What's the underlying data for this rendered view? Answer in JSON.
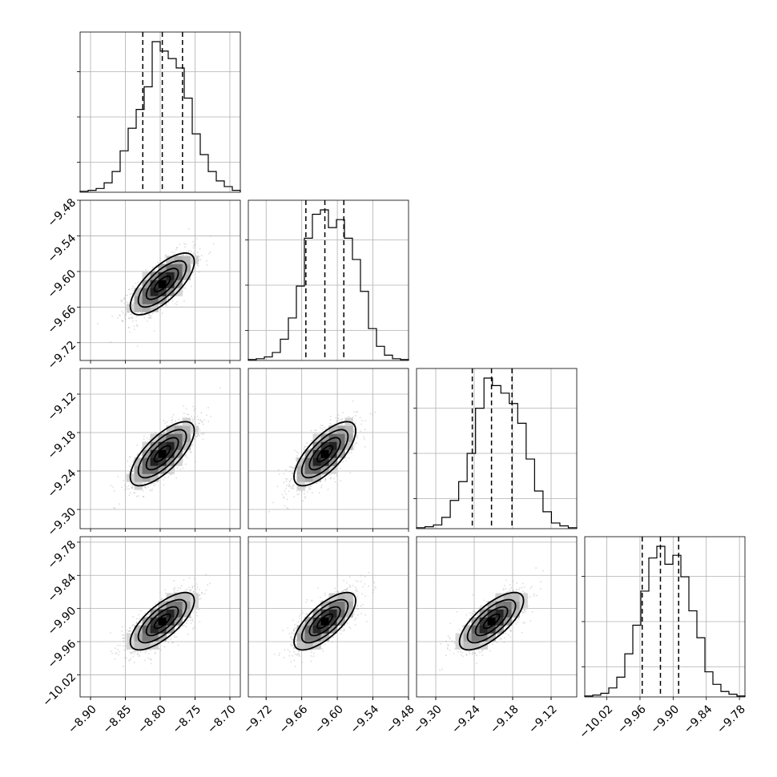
{
  "chart_data": {
    "type": "scatter",
    "subtype": "corner-plot",
    "title": "",
    "grid": true,
    "parameters": [
      {
        "range": [
          -8.915,
          -8.685
        ],
        "ticks": [
          -8.9,
          -8.85,
          -8.8,
          -8.75,
          -8.7
        ],
        "tick_labels": [
          "−8.90",
          "−8.85",
          "−8.80",
          "−8.75",
          "−8.70"
        ],
        "quantiles": [
          -8.825,
          -8.797,
          -8.768
        ],
        "hist": [
          1,
          2,
          4,
          10,
          22,
          44,
          68,
          88,
          112,
          160,
          150,
          142,
          132,
          100,
          62,
          40,
          22,
          12,
          6,
          2
        ]
      },
      {
        "range": [
          -9.75,
          -9.48
        ],
        "ticks": [
          -9.72,
          -9.66,
          -9.6,
          -9.54,
          -9.48
        ],
        "tick_labels": [
          "−9.72",
          "−9.66",
          "−9.60",
          "−9.54",
          "−9.48"
        ],
        "quantiles": [
          -9.653,
          -9.621,
          -9.589
        ],
        "hist": [
          1,
          2,
          4,
          9,
          24,
          48,
          84,
          138,
          165,
          170,
          150,
          159,
          138,
          114,
          78,
          36,
          16,
          6,
          2,
          1
        ]
      },
      {
        "range": [
          -9.33,
          -9.08
        ],
        "ticks": [
          -9.3,
          -9.24,
          -9.18,
          -9.12
        ],
        "tick_labels": [
          "−9.30",
          "−9.24",
          "−9.18",
          "−9.12"
        ],
        "quantiles": [
          -9.243,
          -9.213,
          -9.181
        ],
        "hist": [
          1,
          2,
          4,
          12,
          30,
          50,
          80,
          128,
          160,
          152,
          144,
          133,
          112,
          74,
          40,
          18,
          6,
          3,
          1
        ]
      },
      {
        "range": [
          -10.06,
          -9.77
        ],
        "ticks": [
          -10.02,
          -9.96,
          -9.9,
          -9.84,
          -9.78
        ],
        "tick_labels": [
          "−10.02",
          "−9.96",
          "−9.90",
          "−9.84",
          "−9.78"
        ],
        "quantiles": [
          -9.956,
          -9.923,
          -9.89
        ],
        "hist": [
          1,
          2,
          4,
          10,
          22,
          48,
          80,
          118,
          155,
          168,
          148,
          158,
          134,
          96,
          66,
          28,
          14,
          6,
          3,
          1
        ]
      }
    ],
    "pairs": [
      {
        "row": 1,
        "col": 0,
        "center": [
          -8.797,
          -9.621
        ],
        "std": [
          0.023,
          0.026
        ],
        "rho": 0.72
      },
      {
        "row": 2,
        "col": 0,
        "center": [
          -8.797,
          -9.213
        ],
        "std": [
          0.023,
          0.025
        ],
        "rho": 0.72
      },
      {
        "row": 2,
        "col": 1,
        "center": [
          -9.621,
          -9.213
        ],
        "std": [
          0.026,
          0.025
        ],
        "rho": 0.72
      },
      {
        "row": 3,
        "col": 0,
        "center": [
          -8.797,
          -9.923
        ],
        "std": [
          0.023,
          0.026
        ],
        "rho": 0.72
      },
      {
        "row": 3,
        "col": 1,
        "center": [
          -9.621,
          -9.923
        ],
        "std": [
          0.026,
          0.026
        ],
        "rho": 0.72
      },
      {
        "row": 3,
        "col": 2,
        "center": [
          -9.213,
          -9.923
        ],
        "std": [
          0.025,
          0.026
        ],
        "rho": 0.72
      }
    ],
    "contour_levels_sigma": [
      0.5,
      1.0,
      1.5,
      2.0
    ],
    "colors": {
      "line": "#000000",
      "grid": "#b0b0b0",
      "points": "#9a9a9a"
    }
  }
}
